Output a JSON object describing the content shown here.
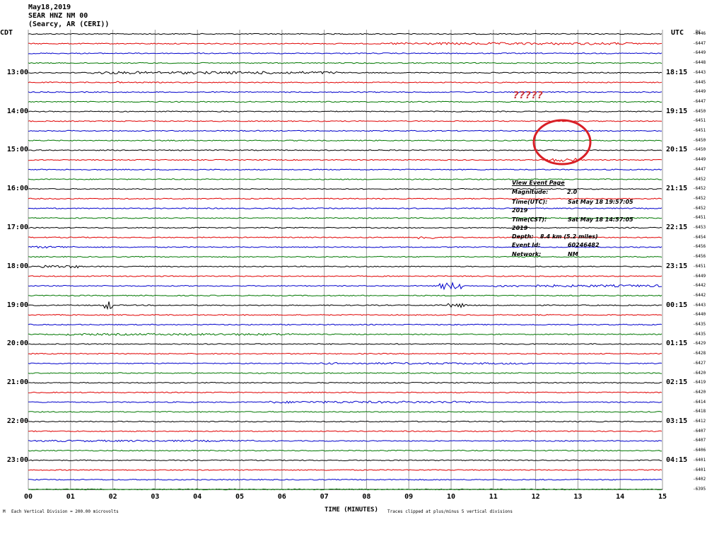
{
  "header": {
    "line1": "May18,2019",
    "line2": "SEAR HNZ NM 00",
    "line3": "(Searcy, AR (CERI))"
  },
  "left_tz": "CDT",
  "right_tz": "UTC",
  "count_unit": "DC",
  "annotation": "?????",
  "event": {
    "link": "View Event Page",
    "magnitude_label": "Magnitude:",
    "magnitude_value": "2.0",
    "utc_label": "Time(UTC):",
    "utc_value": "Sat May 18 19:57:05",
    "utc_year": "2019",
    "cst_label": "Time(CST):",
    "cst_value": "Sat May 18 14:57:05",
    "cst_year": "2019",
    "depth_label": "Depth:",
    "depth_value": "8.4 km (5.2 miles)",
    "id_label": "Event Id:",
    "id_value": "60246482",
    "network_label": "Network:",
    "network_value": "NM"
  },
  "footer": {
    "marker": "M",
    "scale": "Each Vertical Division = 200.00 microvolts",
    "clip": "Traces clipped at plus/minus 5 vertical divisions"
  },
  "chart_data": {
    "type": "line",
    "title": "SEAR HNZ NM 00",
    "xlabel": "TIME (MINUTES)",
    "x_range": [
      0,
      15
    ],
    "x_ticks": [
      "00",
      "01",
      "02",
      "03",
      "04",
      "05",
      "06",
      "07",
      "08",
      "09",
      "10",
      "11",
      "12",
      "13",
      "14",
      "15"
    ],
    "grid": true,
    "trace_colors": [
      "#000000",
      "#e00000",
      "#0000cc",
      "#007700"
    ],
    "left_hour_labels": [
      "13:00",
      "14:00",
      "15:00",
      "16:00",
      "17:00",
      "18:00",
      "19:00",
      "20:00",
      "21:00",
      "22:00",
      "23:00"
    ],
    "right_hour_labels": [
      "18:15",
      "19:15",
      "20:15",
      "21:15",
      "22:15",
      "23:15",
      "00:15",
      "01:15",
      "02:15",
      "03:15",
      "04:15"
    ],
    "hour_label_rows": [
      4,
      8,
      12,
      16,
      20,
      24,
      28,
      32,
      36,
      40,
      44
    ],
    "trace_counts": [
      -6446,
      -6447,
      -6449,
      -6448,
      -6443,
      -6445,
      -6449,
      -6447,
      -6450,
      -6451,
      -6451,
      -6450,
      -6450,
      -6449,
      -6447,
      -6452,
      -6452,
      -6452,
      -6452,
      -6451,
      -6453,
      -6454,
      -6456,
      -6456,
      -6451,
      -6449,
      -6442,
      -6442,
      -6443,
      -6440,
      -6435,
      -6435,
      -6429,
      -6428,
      -6427,
      -6420,
      -6419,
      -6420,
      -6414,
      -6418,
      -6412,
      -6407,
      -6407,
      -6406,
      -6401,
      -6401,
      -6402,
      -6395
    ]
  }
}
